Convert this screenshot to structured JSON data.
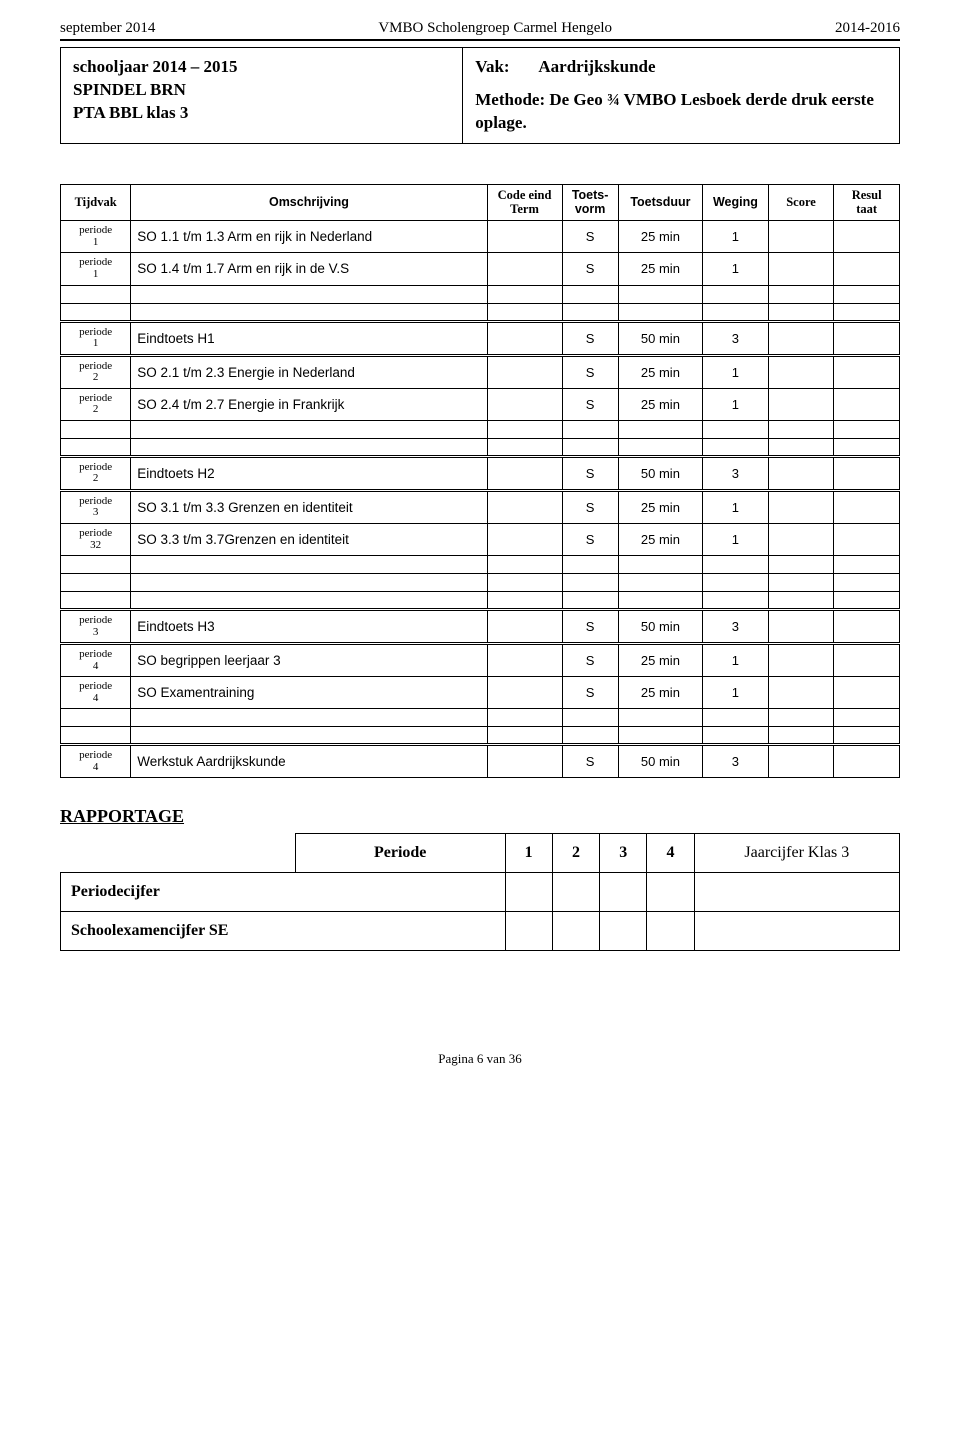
{
  "header": {
    "left": "september 2014",
    "center": "VMBO Scholengroep Carmel Hengelo",
    "right": "2014-2016"
  },
  "info": {
    "left": {
      "line1": "schooljaar 2014 – 2015",
      "line2": "SPINDEL BRN",
      "line3": "PTA BBL klas 3"
    },
    "right": {
      "vak_label": "Vak:",
      "vak_value": "Aardrijkskunde",
      "methode": "Methode: De Geo ¾ VMBO Lesboek derde druk eerste oplage."
    }
  },
  "columns": {
    "tijdvak": "Tijdvak",
    "omschrijving": "Omschrijving",
    "code": "Code eind Term",
    "vorm": "Toets-vorm",
    "duur": "Toetsduur",
    "weging": "Weging",
    "score": "Score",
    "resul": "Resul taat"
  },
  "rows": [
    {
      "tijdvak": "periode 1",
      "omschrijving": "SO 1.1 t/m 1.3 Arm en rijk in Nederland",
      "vorm": "S",
      "duur": "25 min",
      "weging": "1"
    },
    {
      "tijdvak": "periode 1",
      "omschrijving": "SO 1.4 t/m 1.7 Arm en rijk in de V.S",
      "vorm": "S",
      "duur": "25 min",
      "weging": "1"
    }
  ],
  "rows2": [
    {
      "tijdvak": "periode 1",
      "omschrijving": "Eindtoets H1",
      "vorm": "S",
      "duur": "50 min",
      "weging": "3",
      "dbl": true
    },
    {
      "tijdvak": "periode 2",
      "omschrijving": "SO 2.1 t/m 2.3 Energie in Nederland",
      "vorm": "S",
      "duur": "25 min",
      "weging": "1",
      "dbl": true
    },
    {
      "tijdvak": "periode 2",
      "omschrijving": "SO 2.4 t/m 2.7 Energie in Frankrijk",
      "vorm": "S",
      "duur": "25 min",
      "weging": "1"
    }
  ],
  "rows3": [
    {
      "tijdvak": "periode 2",
      "omschrijving": "Eindtoets H2",
      "vorm": "S",
      "duur": "50 min",
      "weging": "3",
      "dbl": true
    },
    {
      "tijdvak": "periode 3",
      "omschrijving": "SO 3.1 t/m 3.3 Grenzen en identiteit",
      "vorm": "S",
      "duur": "25 min",
      "weging": "1",
      "dbl": true
    },
    {
      "tijdvak": "periode 32",
      "omschrijving": "SO 3.3 t/m 3.7Grenzen en identiteit",
      "vorm": "S",
      "duur": "25 min",
      "weging": "1"
    }
  ],
  "rows4": [
    {
      "tijdvak": "periode 3",
      "omschrijving": "Eindtoets H3",
      "vorm": "S",
      "duur": "50 min",
      "weging": "3",
      "dbl": true
    },
    {
      "tijdvak": "periode 4",
      "omschrijving": "SO begrippen leerjaar 3",
      "vorm": "S",
      "duur": "25 min",
      "weging": "1",
      "dbl": true
    },
    {
      "tijdvak": "periode 4",
      "omschrijving": "SO Examentraining",
      "vorm": "S",
      "duur": "25 min",
      "weging": "1"
    }
  ],
  "rows5": [
    {
      "tijdvak": "periode 4",
      "omschrijving": "Werkstuk Aardrijkskunde",
      "vorm": "S",
      "duur": "50 min",
      "weging": "3",
      "dbl": true
    }
  ],
  "rapport": {
    "title": "RAPPORTAGE",
    "periode_label": "Periode",
    "cols": [
      "1",
      "2",
      "3",
      "4"
    ],
    "jaar_label": "Jaarcijfer Klas 3",
    "row1": "Periodecijfer",
    "row2": "Schoolexamencijfer SE"
  },
  "footer": "Pagina 6 van 36"
}
